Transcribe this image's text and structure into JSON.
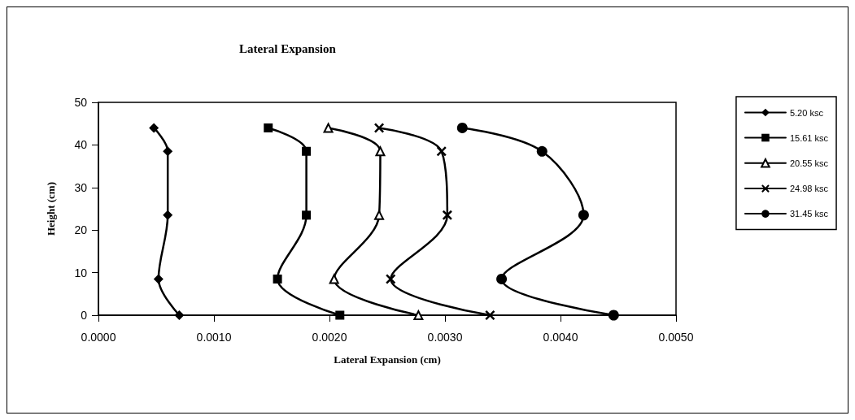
{
  "chart_data": {
    "type": "line",
    "title": "Lateral Expansion",
    "xlabel": "Lateral Expansion (cm)",
    "ylabel": "Height (cm)",
    "xlim": [
      0,
      0.005
    ],
    "xticks": [
      {
        "value": 0,
        "label": "0.0000"
      },
      {
        "value": 0.001,
        "label": "0.0010"
      },
      {
        "value": 0.002,
        "label": "0.0020"
      },
      {
        "value": 0.003,
        "label": "0.0030"
      },
      {
        "value": 0.004,
        "label": "0.0040"
      },
      {
        "value": 0.005,
        "label": "0.0050"
      }
    ],
    "ylim": [
      0,
      50
    ],
    "yticks": [
      0,
      10,
      20,
      30,
      40,
      50
    ],
    "grid": false,
    "legend": "right",
    "line_style": "solid",
    "series": [
      {
        "name": "5.20 ksc",
        "color": "#000000",
        "marker": "diamond",
        "x": [
          0.0007,
          0.00052,
          0.0006,
          0.0006,
          0.00048
        ],
        "values": [
          0,
          8.5,
          23.5,
          38.5,
          44
        ]
      },
      {
        "name": "15.61 ksc",
        "color": "#000000",
        "marker": "square",
        "x": [
          0.00209,
          0.00155,
          0.0018,
          0.0018,
          0.00147
        ],
        "values": [
          0,
          8.5,
          23.5,
          38.5,
          44
        ]
      },
      {
        "name": "20.55 ksc",
        "color": "#000000",
        "marker": "triangle",
        "x": [
          0.00277,
          0.00204,
          0.00243,
          0.00244,
          0.00199
        ],
        "values": [
          0,
          8.5,
          23.5,
          38.5,
          44
        ]
      },
      {
        "name": "24.98 ksc",
        "color": "#000000",
        "marker": "cross",
        "x": [
          0.00339,
          0.00253,
          0.00302,
          0.00297,
          0.00243
        ],
        "values": [
          0,
          8.5,
          23.5,
          38.5,
          44
        ]
      },
      {
        "name": "31.45 ksc",
        "color": "#000000",
        "marker": "circle",
        "x": [
          0.00446,
          0.00349,
          0.0042,
          0.00384,
          0.00315
        ],
        "values": [
          0,
          8.5,
          23.5,
          38.5,
          44
        ]
      }
    ]
  }
}
